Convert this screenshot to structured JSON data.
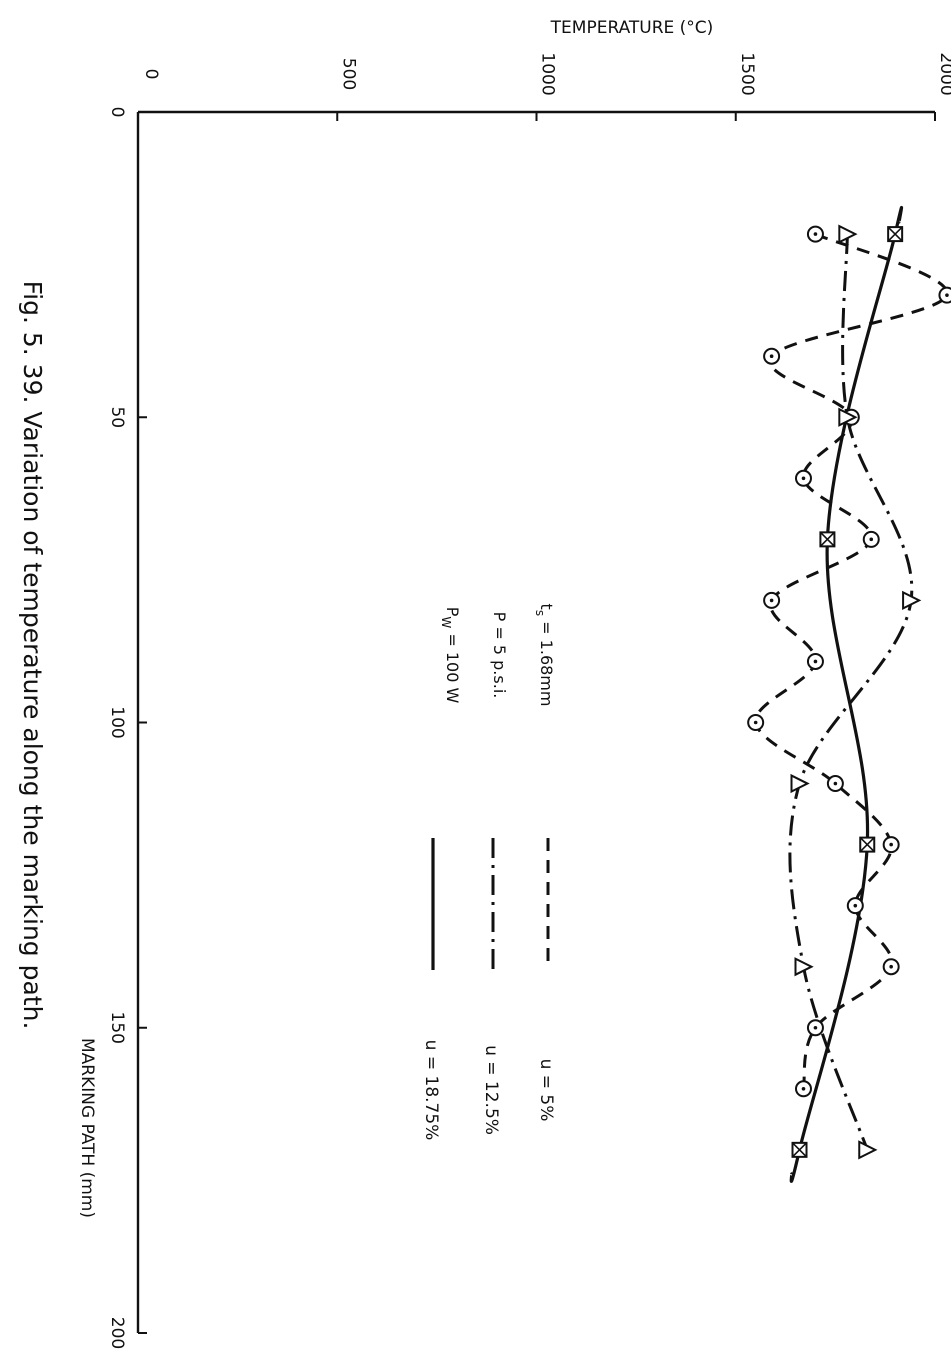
{
  "caption": "Fig. 5. 39.   Variation of temperature along the marking path.",
  "parameters": [
    "t_s = 1.68mm",
    "P =  5 p.s.i.",
    "P_w = 100 W"
  ],
  "chart_data": {
    "type": "line",
    "orientation": "rotated 90 degrees clockwise",
    "ylabel": "TEMPERATURE (°C)",
    "xlabel": "MARKING PATH (mm)",
    "ylim": [
      0,
      2000
    ],
    "xlim": [
      0,
      200
    ],
    "y_ticks": [
      "0",
      "500",
      "1000",
      "1500",
      "2000"
    ],
    "x_ticks": [
      "0",
      "50",
      "100",
      "150",
      "200"
    ],
    "grid": false,
    "legend_position": "center",
    "series": [
      {
        "name": "u =  5%",
        "marker": "circle",
        "line_style": "dashed",
        "x": [
          20,
          30,
          40,
          50,
          60,
          70,
          80,
          90,
          100,
          110,
          120,
          130,
          140,
          150,
          160
        ],
        "y": [
          1700,
          2030,
          1590,
          1790,
          1670,
          1840,
          1590,
          1700,
          1550,
          1750,
          1890,
          1800,
          1890,
          1700,
          1670
        ]
      },
      {
        "name": "u = 12.5%",
        "marker": "triangle",
        "line_style": "dash-dot",
        "x": [
          20,
          50,
          80,
          110,
          140,
          170
        ],
        "y": [
          1780,
          1780,
          1940,
          1660,
          1670,
          1830
        ]
      },
      {
        "name": "u = 18.75%",
        "marker": "crossed-square",
        "line_style": "solid",
        "x": [
          20,
          70,
          120,
          170
        ],
        "y": [
          1900,
          1730,
          1830,
          1660
        ]
      }
    ]
  }
}
